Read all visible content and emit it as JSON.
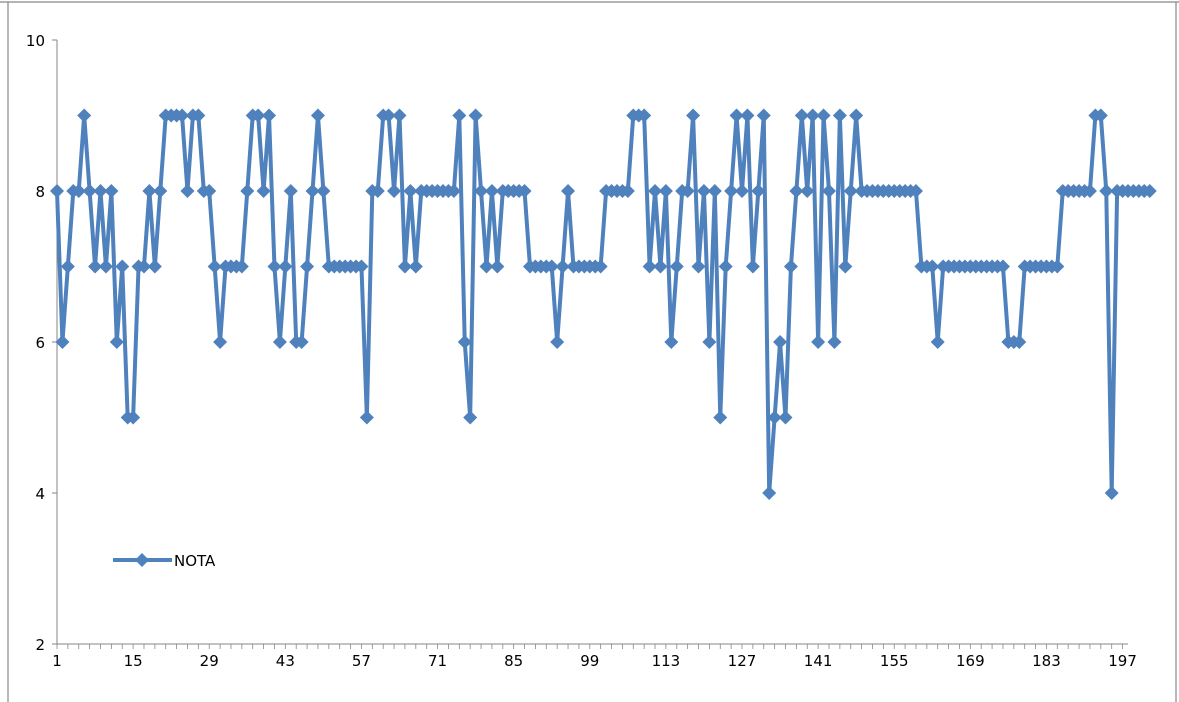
{
  "chart_data": {
    "type": "line",
    "title": "",
    "xlabel": "",
    "ylabel": "",
    "ylim": [
      2,
      10
    ],
    "yticks": [
      2,
      4,
      6,
      8,
      10
    ],
    "xlim": [
      1,
      198
    ],
    "xticks": [
      1,
      15,
      29,
      43,
      57,
      71,
      85,
      99,
      113,
      127,
      141,
      155,
      169,
      183,
      197
    ],
    "grid": false,
    "legend_position": "lower-left",
    "marker": "diamond",
    "series": [
      {
        "name": "NOTA",
        "color": "#4F81BD",
        "values": [
          8,
          6,
          7,
          8,
          8,
          9,
          8,
          7,
          8,
          7,
          8,
          6,
          7,
          5,
          5,
          7,
          7,
          8,
          7,
          8,
          9,
          9,
          9,
          9,
          8,
          9,
          9,
          8,
          8,
          7,
          6,
          7,
          7,
          7,
          7,
          8,
          9,
          9,
          8,
          9,
          7,
          6,
          7,
          8,
          6,
          6,
          7,
          8,
          9,
          8,
          7,
          7,
          7,
          7,
          7,
          7,
          7,
          5,
          8,
          8,
          9,
          9,
          8,
          9,
          7,
          8,
          7,
          8,
          8,
          8,
          8,
          8,
          8,
          8,
          9,
          6,
          5,
          9,
          8,
          7,
          8,
          7,
          8,
          8,
          8,
          8,
          8,
          7,
          7,
          7,
          7,
          7,
          6,
          7,
          8,
          7,
          7,
          7,
          7,
          7,
          7,
          8,
          8,
          8,
          8,
          8,
          9,
          9,
          9,
          7,
          8,
          7,
          8,
          6,
          7,
          8,
          8,
          9,
          7,
          8,
          6,
          8,
          5,
          7,
          8,
          9,
          8,
          9,
          7,
          8,
          9,
          4,
          5,
          6,
          5,
          7,
          8,
          9,
          8,
          9,
          6,
          9,
          8,
          6,
          9,
          7,
          8,
          9,
          8,
          8,
          8,
          8,
          8,
          8,
          8,
          8,
          8,
          8,
          8,
          7,
          7,
          7,
          6,
          7,
          7,
          7,
          7,
          7,
          7,
          7,
          7,
          7,
          7,
          7,
          7,
          6,
          6,
          6,
          7,
          7,
          7,
          7,
          7,
          7,
          7,
          8,
          8,
          8,
          8,
          8,
          8,
          9,
          9,
          8,
          4,
          8,
          8,
          8,
          8,
          8,
          8,
          8
        ]
      }
    ]
  }
}
